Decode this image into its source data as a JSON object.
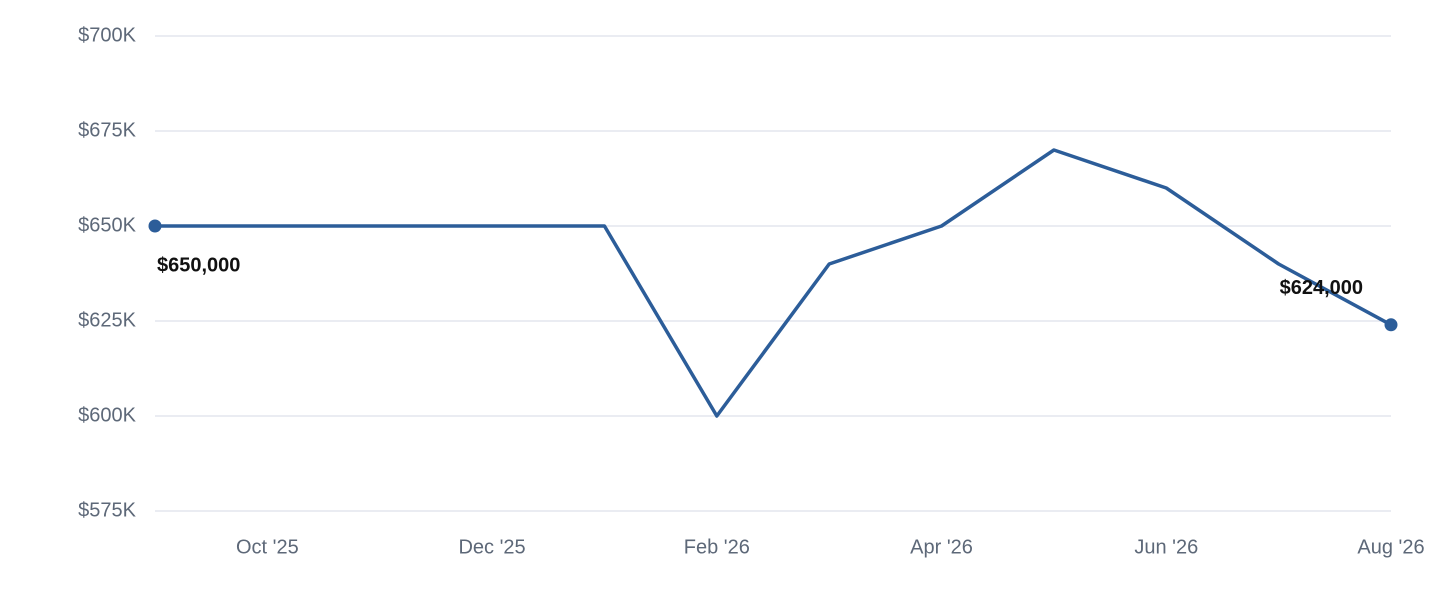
{
  "chart_data": {
    "type": "line",
    "categories": [
      null,
      "Oct '25",
      null,
      "Dec '25",
      null,
      "Feb '26",
      null,
      "Apr '26",
      null,
      "Jun '26",
      null,
      "Aug '26"
    ],
    "series": [
      {
        "color": "#2c5d99",
        "values": [
          650000,
          650000,
          650000,
          650000,
          650000,
          600000,
          640000,
          650000,
          670000,
          660000,
          640000,
          624000
        ],
        "value_labels": [
          "$650,000",
          null,
          null,
          null,
          null,
          null,
          null,
          null,
          null,
          null,
          null,
          "$624,000"
        ]
      }
    ],
    "ylim": [
      575000,
      700000
    ],
    "yticks": [
      {
        "value": 575000,
        "label": "$575K"
      },
      {
        "value": 600000,
        "label": "$600K"
      },
      {
        "value": 625000,
        "label": "$625K"
      },
      {
        "value": 650000,
        "label": "$650K"
      },
      {
        "value": 675000,
        "label": "$675K"
      },
      {
        "value": 700000,
        "label": "$700K"
      }
    ],
    "grid": true
  }
}
